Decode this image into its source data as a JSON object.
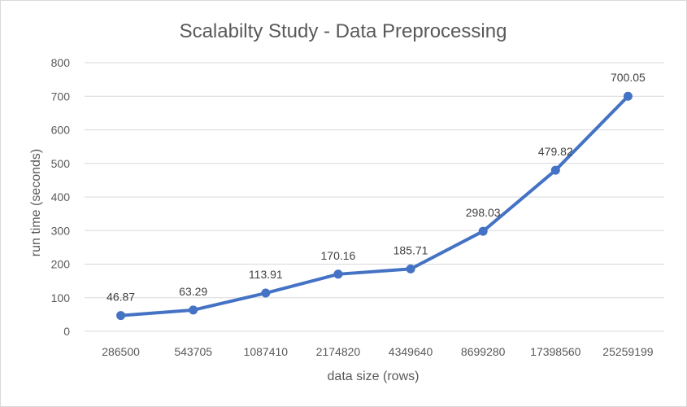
{
  "chart_data": {
    "type": "line",
    "title": "Scalabilty Study - Data Preprocessing",
    "xlabel": "data size (rows)",
    "ylabel": "run time (seconds)",
    "categories": [
      "286500",
      "543705",
      "1087410",
      "2174820",
      "4349640",
      "8699280",
      "17398560",
      "25259199"
    ],
    "series": [
      {
        "values": [
          46.87,
          63.29,
          113.91,
          170.16,
          185.71,
          298.03,
          479.82,
          700.05
        ],
        "data_labels": [
          "46.87",
          "63.29",
          "113.91",
          "170.16",
          "185.71",
          "298.03",
          "479.82",
          "700.05"
        ],
        "color": "#4472C4"
      }
    ],
    "yticks": [
      "0",
      "100",
      "200",
      "300",
      "400",
      "500",
      "600",
      "700",
      "800"
    ],
    "ylim": [
      0,
      800
    ],
    "grid": true,
    "legend": "none"
  }
}
